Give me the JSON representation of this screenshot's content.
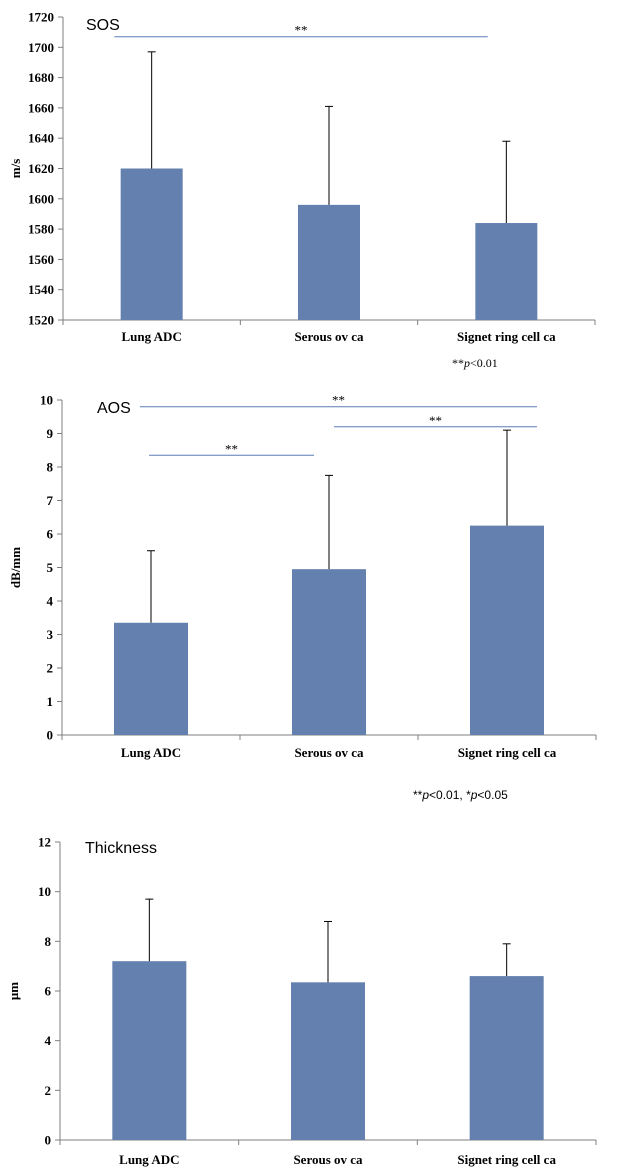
{
  "colors": {
    "bar": "#6480AE",
    "sig_line": "#5A7FB5",
    "axis": "#7F7F7F",
    "error": "#000000"
  },
  "chart_data": [
    {
      "type": "bar",
      "title": "SOS",
      "ylabel": "m/s",
      "categories": [
        "Lung ADC",
        "Serous ov ca",
        "Signet ring cell ca"
      ],
      "values": [
        1620,
        1596,
        1584
      ],
      "error_upper": [
        77,
        65,
        54
      ],
      "ylim": [
        1520,
        1720
      ],
      "yticks": [
        1520,
        1540,
        1560,
        1580,
        1600,
        1620,
        1640,
        1660,
        1680,
        1700,
        1720
      ],
      "significance": [
        {
          "from": 0,
          "to": 2,
          "label": "**",
          "y": 1707
        }
      ],
      "footnote_prefix": "**",
      "footnote_italic": "p",
      "footnote_suffix": "<0.01"
    },
    {
      "type": "bar",
      "title": "AOS",
      "ylabel": "dB/mm",
      "categories": [
        "Lung ADC",
        "Serous ov ca",
        "Signet ring cell ca"
      ],
      "values": [
        3.35,
        4.95,
        6.25
      ],
      "error_upper": [
        2.15,
        2.8,
        2.85
      ],
      "ylim": [
        0,
        10
      ],
      "yticks": [
        0,
        1,
        2,
        3,
        4,
        5,
        6,
        7,
        8,
        9,
        10
      ],
      "significance": [
        {
          "from": 0,
          "to": 2,
          "label": "**",
          "y": 9.8
        },
        {
          "from": 1,
          "to": 2,
          "label": "**",
          "y": 9.2
        },
        {
          "from": 0,
          "to": 1,
          "label": "**",
          "y": 8.35
        }
      ],
      "footnote_prefix": "**",
      "footnote_italic": "p",
      "footnote_suffix": "<0.01, *",
      "footnote_italic2": "p",
      "footnote_suffix2": "<0.05"
    },
    {
      "type": "bar",
      "title": "Thickness",
      "ylabel": "μm",
      "categories": [
        "Lung ADC",
        "Serous ov ca",
        "Signet ring cell ca"
      ],
      "values": [
        7.2,
        6.35,
        6.6
      ],
      "error_upper": [
        2.5,
        2.45,
        1.3
      ],
      "ylim": [
        0,
        12
      ],
      "yticks": [
        0,
        2,
        4,
        6,
        8,
        10,
        12
      ],
      "significance": []
    }
  ]
}
